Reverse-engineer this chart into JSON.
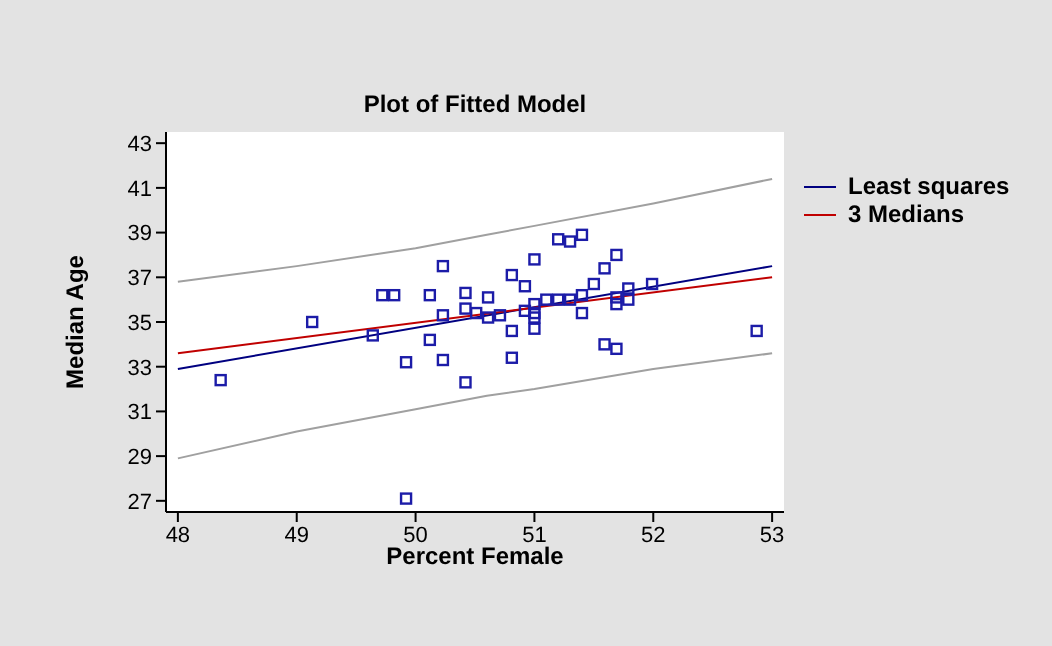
{
  "chart_data": {
    "type": "scatter",
    "title": "Plot of Fitted Model",
    "xlabel": "Percent Female",
    "ylabel": "Median Age",
    "xlim": [
      47.9,
      53.1
    ],
    "xticks": [
      48,
      49,
      50,
      51,
      52,
      53
    ],
    "ylim": [
      26.5,
      43.5
    ],
    "yticks": [
      27,
      29,
      31,
      33,
      35,
      37,
      39,
      41,
      43
    ],
    "legend": "top right",
    "series": [
      {
        "marker": "square",
        "color": "#1c1ca8",
        "x": [
          48.36,
          49.13,
          49.64,
          49.72,
          49.82,
          49.92,
          49.92,
          50.12,
          50.12,
          50.23,
          50.23,
          50.23,
          50.42,
          50.42,
          50.42,
          50.51,
          50.61,
          50.61,
          50.71,
          50.81,
          50.81,
          50.81,
          50.92,
          50.92,
          51.0,
          51.0,
          51.0,
          51.0,
          51.0,
          51.1,
          51.2,
          51.2,
          51.3,
          51.3,
          51.4,
          51.4,
          51.4,
          51.5,
          51.59,
          51.59,
          51.69,
          51.69,
          51.69,
          51.69,
          51.79,
          51.79,
          51.99,
          52.87
        ],
        "values": [
          32.4,
          35.0,
          34.4,
          36.2,
          36.2,
          33.2,
          27.1,
          36.2,
          34.2,
          37.5,
          35.3,
          33.3,
          36.3,
          35.6,
          32.3,
          35.4,
          36.1,
          35.2,
          35.3,
          37.1,
          34.6,
          33.4,
          36.6,
          35.5,
          37.8,
          35.8,
          35.4,
          35.2,
          34.7,
          36.0,
          38.7,
          36.0,
          38.6,
          36.0,
          38.9,
          36.2,
          35.4,
          36.7,
          37.4,
          34.0,
          38.0,
          36.1,
          35.8,
          33.8,
          36.5,
          36.0,
          36.7,
          34.6
        ]
      },
      {
        "type": "line",
        "name": "Least squares",
        "color": "#000080",
        "x": [
          48,
          53
        ],
        "values": [
          32.9,
          37.5
        ]
      },
      {
        "type": "line",
        "name": "3 Medians",
        "color": "#c00000",
        "x": [
          48,
          53
        ],
        "values": [
          33.6,
          37.0
        ]
      },
      {
        "type": "line",
        "color": "#a0a0a0",
        "x": [
          48,
          49,
          50,
          50.6,
          51,
          52,
          53
        ],
        "values": [
          36.8,
          37.5,
          38.3,
          38.9,
          39.3,
          40.3,
          41.4
        ]
      },
      {
        "type": "line",
        "color": "#a0a0a0",
        "x": [
          48,
          49,
          50,
          50.6,
          51,
          52,
          53
        ],
        "values": [
          28.9,
          30.1,
          31.1,
          31.7,
          32.0,
          32.9,
          33.6
        ]
      }
    ]
  }
}
